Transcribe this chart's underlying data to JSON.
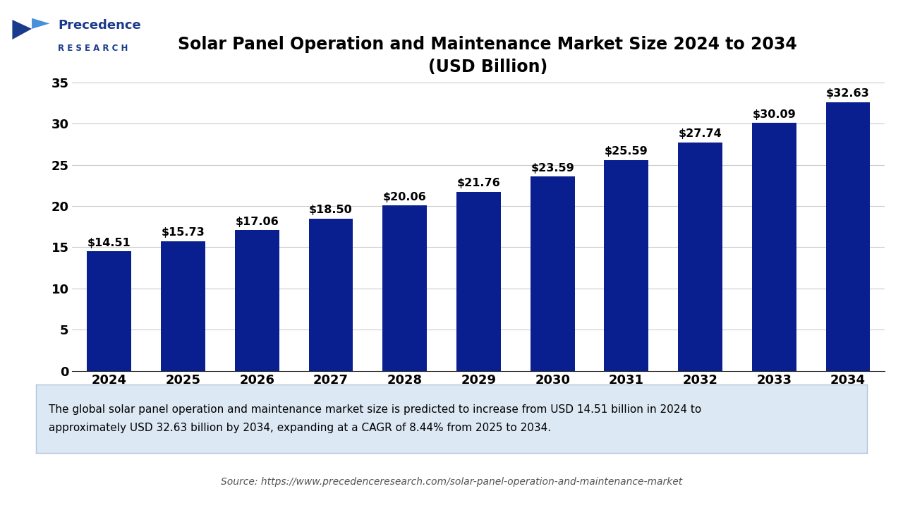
{
  "title_line1": "Solar Panel Operation and Maintenance Market Size 2024 to 2034",
  "title_line2": "(USD Billion)",
  "years": [
    2024,
    2025,
    2026,
    2027,
    2028,
    2029,
    2030,
    2031,
    2032,
    2033,
    2034
  ],
  "values": [
    14.51,
    15.73,
    17.06,
    18.5,
    20.06,
    21.76,
    23.59,
    25.59,
    27.74,
    30.09,
    32.63
  ],
  "labels": [
    "$14.51",
    "$15.73",
    "$17.06",
    "$18.50",
    "$20.06",
    "$21.76",
    "$23.59",
    "$25.59",
    "$27.74",
    "$30.09",
    "$32.63"
  ],
  "bar_color": "#0a1f8f",
  "ylim": [
    0,
    37
  ],
  "yticks": [
    0,
    5,
    10,
    15,
    20,
    25,
    30,
    35
  ],
  "background_color": "#ffffff",
  "plot_bg_color": "#ffffff",
  "grid_color": "#cccccc",
  "annotation_box_color": "#dde8f5",
  "annotation_text": "The global solar panel operation and maintenance market size is predicted to increase from USD 14.51 billion in 2024 to\napproximately USD 32.63 billion by 2034, expanding at a CAGR of 8.44% from 2025 to 2034.",
  "source_text": "Source: https://www.precedenceresearch.com/solar-panel-operation-and-maintenance-market",
  "title_fontsize": 17,
  "tick_fontsize": 13,
  "label_fontsize": 11.5,
  "annotation_fontsize": 11,
  "source_fontsize": 10,
  "border_color": "#1a3a8c"
}
